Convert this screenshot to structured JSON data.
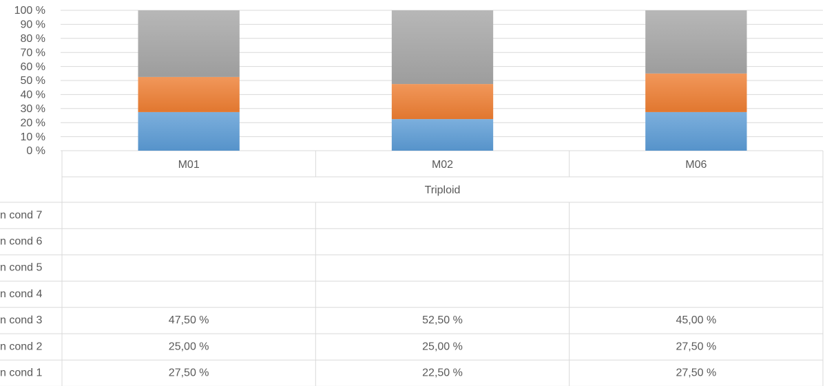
{
  "chart_data": {
    "type": "stacked_bar_100",
    "categories": [
      "M01",
      "M02",
      "M06"
    ],
    "category_group": "Triploid",
    "series": [
      {
        "name": "n cond 1",
        "color": "#5b9bd5",
        "values": [
          27.5,
          22.5,
          27.5
        ],
        "value_labels": [
          "27,50 %",
          "22,50 %",
          "27,50 %"
        ]
      },
      {
        "name": "n cond 2",
        "color": "#ed7d31",
        "values": [
          25,
          25,
          27.5
        ],
        "value_labels": [
          "25,00 %",
          "25,00 %",
          "27,50 %"
        ]
      },
      {
        "name": "n cond 3",
        "color": "#a5a5a5",
        "values": [
          47.5,
          52.5,
          45
        ],
        "value_labels": [
          "47,50 %",
          "52,50 %",
          "45,00 %"
        ]
      },
      {
        "name": "n cond 4",
        "color": "#ffc000",
        "values": [
          null,
          null,
          null
        ]
      },
      {
        "name": "n cond 5",
        "color": "#4472c4",
        "values": [
          null,
          null,
          null
        ]
      },
      {
        "name": "n cond 6",
        "color": "#70ad47",
        "values": [
          null,
          null,
          null
        ]
      },
      {
        "name": "n cond 7",
        "color": "#264478",
        "values": [
          null,
          null,
          null
        ]
      }
    ],
    "ylim": [
      0,
      100
    ],
    "yticks": [
      {
        "value": 0,
        "label": "0 %"
      },
      {
        "value": 10,
        "label": "10 %"
      },
      {
        "value": 20,
        "label": "20 %"
      },
      {
        "value": 30,
        "label": "30 %"
      },
      {
        "value": 40,
        "label": "40 %"
      },
      {
        "value": 50,
        "label": "50 %"
      },
      {
        "value": 60,
        "label": "60 %"
      },
      {
        "value": 70,
        "label": "70 %"
      },
      {
        "value": 80,
        "label": "80 %"
      },
      {
        "value": 90,
        "label": "90 %"
      },
      {
        "value": 100,
        "label": "100 %"
      }
    ],
    "grid": true,
    "data_table": true
  }
}
